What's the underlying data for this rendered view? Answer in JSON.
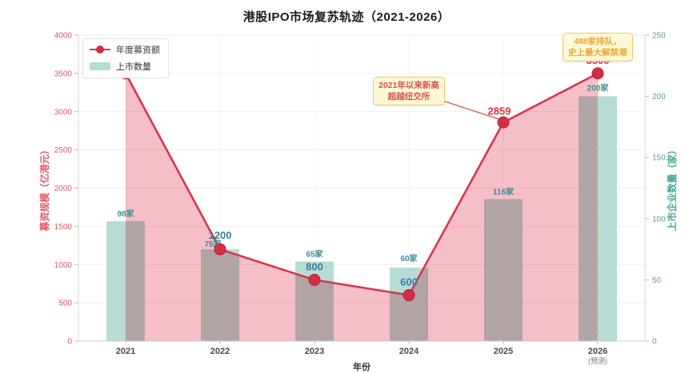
{
  "title": "港股IPO市场复苏轨迹（2021-2026）",
  "legend": {
    "items": [
      {
        "label": "年度募资额",
        "type": "line",
        "color": "#d6374c"
      },
      {
        "label": "上市数量",
        "type": "bar",
        "color": "#b7dcd5"
      }
    ]
  },
  "annotations": [
    {
      "lines": [
        "2021年以来新高",
        "超越纽交所"
      ],
      "text_color": "#d9534f",
      "bg": "#fdf9d8",
      "border": "#ecc95f"
    },
    {
      "lines": [
        "488家排队，",
        "史上最大解禁潮"
      ],
      "text_color": "#eda73a",
      "bg": "#fdf9d8",
      "border": "#ecc95f"
    }
  ],
  "chart_data": {
    "type": "combo",
    "title": "港股IPO市场复苏轨迹（2021-2026）",
    "categories": [
      "2021",
      "2022",
      "2023",
      "2024",
      "2025",
      "2026"
    ],
    "category_notes": [
      "",
      "",
      "",
      "",
      "",
      "(预测)"
    ],
    "xlabel": "年份",
    "series": [
      {
        "name": "年度募资额",
        "type": "line",
        "axis": "left",
        "color": "#d6374c",
        "area_color": "#f6bec6",
        "point_color": "#d22e44",
        "values": [
          3500,
          1200,
          800,
          600,
          2859,
          3500
        ],
        "point_labels": [
          "",
          "1200",
          "800",
          "600",
          "2859",
          "3500"
        ],
        "point_label_colors": [
          "",
          "#3b7ea3",
          "#3b7ea3",
          "#3b7ea3",
          "#d6374c",
          "#d6374c"
        ]
      },
      {
        "name": "上市数量",
        "type": "bar",
        "axis": "right",
        "color": "#b7dcd5",
        "values": [
          98,
          75,
          65,
          60,
          116,
          200
        ],
        "bar_labels": [
          "98家",
          "75家",
          "65家",
          "60家",
          "116家",
          "200家"
        ],
        "label_color": "#3c8e99"
      }
    ],
    "left_axis": {
      "label": "募资规模（亿港元）",
      "min": 0,
      "max": 4000,
      "step": 500,
      "color": "#e25865"
    },
    "right_axis": {
      "label": "上市企业数量（家）",
      "min": 0,
      "max": 250,
      "step": 50,
      "color": "#4ba695"
    },
    "grid": true,
    "legend_position": "top-left",
    "forecast_line": {
      "category_index": 5,
      "color": "#d3ce58",
      "style": "dashed"
    }
  }
}
